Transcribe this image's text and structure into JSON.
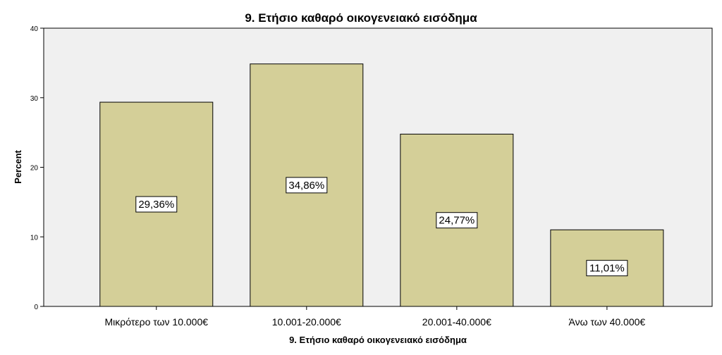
{
  "chart_data": {
    "type": "bar",
    "title": "9. Ετήσιο καθαρό οικογενειακό εισόδημα",
    "xlabel": "9. Ετήσιο καθαρό οικογενειακό εισόδημα",
    "ylabel": "Percent",
    "categories": [
      "Μικρότερο των 10.000€",
      "10.001-20.000€",
      "20.001-40.000€",
      "Άνω των 40.000€"
    ],
    "values": [
      29.36,
      34.86,
      24.77,
      11.01
    ],
    "data_labels": [
      "29,36%",
      "34,86%",
      "24,77%",
      "11,01%"
    ],
    "ylim": [
      0,
      40
    ],
    "yticks": [
      0,
      10,
      20,
      30,
      40
    ],
    "grid": false,
    "legend": "none",
    "colors": {
      "bar_fill": "#d4cf98",
      "bar_stroke": "#000000",
      "plot_background": "#f0f0f0"
    }
  }
}
